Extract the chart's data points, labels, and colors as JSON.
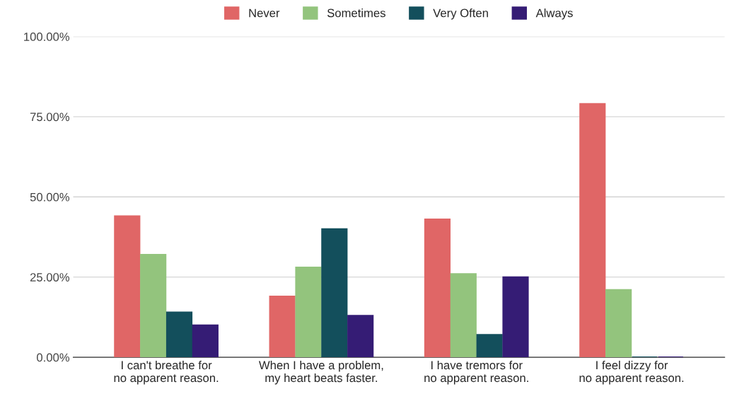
{
  "chart_data": {
    "type": "bar",
    "categories": [
      "I can't breathe for no apparent reason.",
      "When I have a problem, my heart beats faster.",
      "I have tremors for no apparent reason.",
      "I feel dizzy for no apparent reason."
    ],
    "series": [
      {
        "name": "Never",
        "color": "#e06666",
        "values": [
          44,
          19,
          43,
          79
        ]
      },
      {
        "name": "Sometimes",
        "color": "#93c47d",
        "values": [
          32,
          28,
          26,
          21
        ]
      },
      {
        "name": "Very Often",
        "color": "#134f5c",
        "values": [
          14,
          40,
          7,
          0
        ]
      },
      {
        "name": "Always",
        "color": "#351c75",
        "values": [
          10,
          13,
          25,
          0
        ]
      }
    ],
    "ylim": [
      0,
      100
    ],
    "yticks": [
      {
        "value": 0,
        "label": "0.00%"
      },
      {
        "value": 25,
        "label": "25.00%"
      },
      {
        "value": 50,
        "label": "50.00%"
      },
      {
        "value": 75,
        "label": "75.00%"
      },
      {
        "value": 100,
        "label": "100.00%"
      }
    ],
    "grid": "y",
    "legend": "top"
  }
}
